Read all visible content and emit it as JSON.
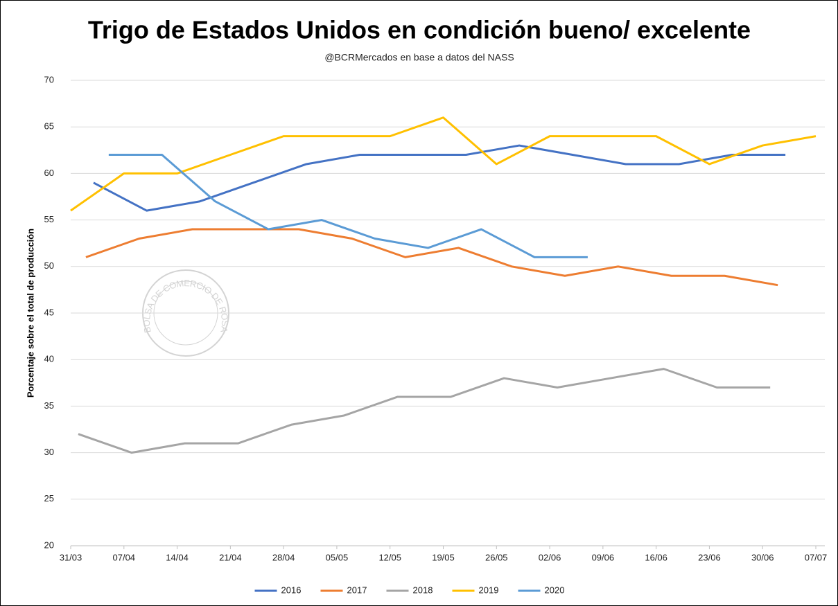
{
  "chart_data": {
    "type": "line",
    "title": "Trigo de Estados Unidos en condición bueno/ excelente",
    "subtitle": "@BCRMercados en base a datos del NASS",
    "y_label": "Porcentaje sobre el total de producción",
    "watermark": "BOLSA DE COMERCIO DE ROSARIO",
    "xlim": [
      0,
      98
    ],
    "xticks": [
      {
        "value": 0,
        "label": "31/03"
      },
      {
        "value": 7,
        "label": "07/04"
      },
      {
        "value": 14,
        "label": "14/04"
      },
      {
        "value": 21,
        "label": "21/04"
      },
      {
        "value": 28,
        "label": "28/04"
      },
      {
        "value": 35,
        "label": "05/05"
      },
      {
        "value": 42,
        "label": "12/05"
      },
      {
        "value": 49,
        "label": "19/05"
      },
      {
        "value": 56,
        "label": "26/05"
      },
      {
        "value": 63,
        "label": "02/06"
      },
      {
        "value": 70,
        "label": "09/06"
      },
      {
        "value": 77,
        "label": "16/06"
      },
      {
        "value": 84,
        "label": "23/06"
      },
      {
        "value": 91,
        "label": "30/06"
      },
      {
        "value": 98,
        "label": "07/07"
      }
    ],
    "ylim": [
      20,
      70
    ],
    "yticks": [
      20,
      25,
      30,
      35,
      40,
      45,
      50,
      55,
      60,
      65,
      70
    ],
    "grid": true,
    "legend": "bottom",
    "series": [
      {
        "name": "2016",
        "color": "#4472c4",
        "x": [
          3,
          10,
          17,
          24,
          31,
          38,
          45,
          52,
          59,
          66,
          73,
          80,
          87,
          94
        ],
        "values": [
          59,
          56,
          57,
          59,
          61,
          62,
          62,
          62,
          63,
          62,
          61,
          61,
          62,
          62
        ]
      },
      {
        "name": "2017",
        "color": "#ed7d31",
        "x": [
          2,
          9,
          16,
          23,
          30,
          37,
          44,
          51,
          58,
          65,
          72,
          79,
          86,
          93
        ],
        "values": [
          51,
          53,
          54,
          54,
          54,
          53,
          51,
          52,
          50,
          49,
          50,
          49,
          49,
          48
        ]
      },
      {
        "name": "2018",
        "color": "#a5a5a5",
        "x": [
          1,
          8,
          15,
          22,
          29,
          36,
          43,
          50,
          57,
          64,
          71,
          78,
          85,
          92
        ],
        "values": [
          32,
          30,
          31,
          31,
          33,
          34,
          36,
          36,
          38,
          37,
          38,
          39,
          37,
          37
        ]
      },
      {
        "name": "2019",
        "color": "#ffc000",
        "x": [
          0,
          7,
          14,
          21,
          28,
          35,
          42,
          49,
          56,
          63,
          70,
          77,
          84,
          91,
          98
        ],
        "values": [
          56,
          60,
          60,
          62,
          64,
          64,
          64,
          66,
          61,
          64,
          64,
          64,
          61,
          63,
          64
        ]
      },
      {
        "name": "2020",
        "color": "#5b9bd5",
        "x": [
          5,
          12,
          19,
          26,
          33,
          40,
          47,
          54,
          61,
          68
        ],
        "values": [
          62,
          62,
          57,
          54,
          55,
          53,
          52,
          54,
          51,
          51
        ]
      }
    ]
  }
}
